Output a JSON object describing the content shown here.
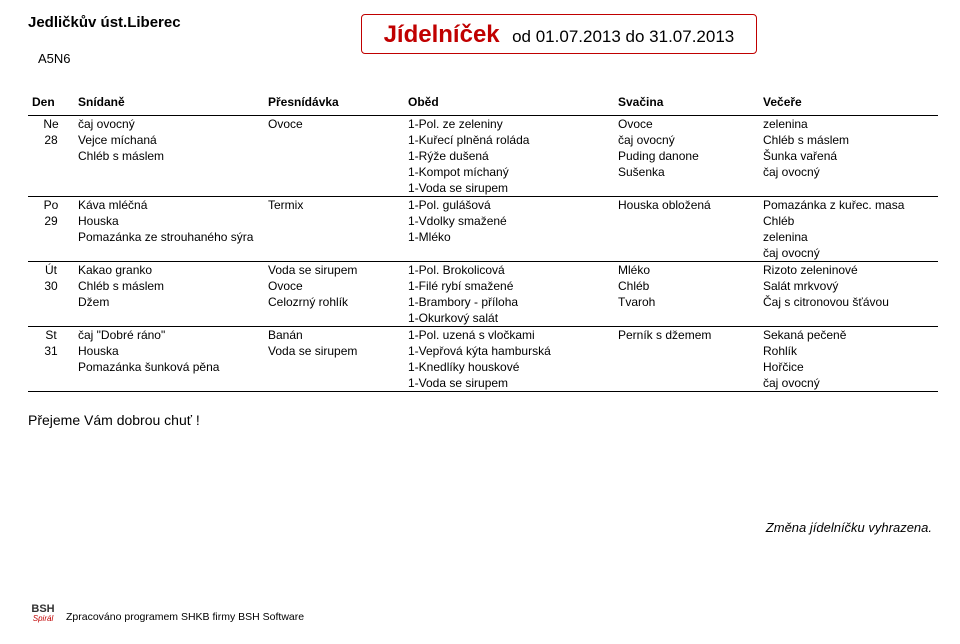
{
  "header": {
    "school": "Jedličkův úst.Liberec",
    "code": "A5N6",
    "title_red": "Jídelníček",
    "title_black": "od 01.07.2013 do 31.07.2013"
  },
  "columns": {
    "den": "Den",
    "snidane": "Snídaně",
    "presnidavka": "Přesnídávka",
    "obed": "Oběd",
    "svacina": "Svačina",
    "vecere": "Večeře"
  },
  "days": [
    {
      "dayAbbr": "Ne",
      "dayNum": "28",
      "rows": [
        {
          "sni": "čaj ovocný",
          "pre": "Ovoce",
          "obe": "1-Pol. ze zeleniny",
          "sva": "Ovoce",
          "vec": "zelenina"
        },
        {
          "sni": "Vejce míchaná",
          "pre": "",
          "obe": "1-Kuřecí plněná roláda",
          "sva": "čaj ovocný",
          "vec": "Chléb s máslem"
        },
        {
          "sni": "Chléb s máslem",
          "pre": "",
          "obe": "1-Rýže dušená",
          "sva": "Puding danone",
          "vec": "Šunka vařená"
        },
        {
          "sni": "",
          "pre": "",
          "obe": "1-Kompot míchaný",
          "sva": "Sušenka",
          "vec": "čaj ovocný"
        },
        {
          "sni": "",
          "pre": "",
          "obe": "1-Voda se sirupem",
          "sva": "",
          "vec": ""
        }
      ]
    },
    {
      "dayAbbr": "Po",
      "dayNum": "29",
      "rows": [
        {
          "sni": "Káva mléčná",
          "pre": "Termix",
          "obe": "1-Pol. gulášová",
          "sva": "Houska obložená",
          "vec": "Pomazánka z kuřec. masa"
        },
        {
          "sni": "Houska",
          "pre": "",
          "obe": "1-Vdolky smažené",
          "sva": "",
          "vec": "Chléb"
        },
        {
          "sni": "Pomazánka ze strouhaného sýra",
          "pre": "",
          "obe": "1-Mléko",
          "sva": "",
          "vec": "zelenina"
        },
        {
          "sni": "",
          "pre": "",
          "obe": "",
          "sva": "",
          "vec": "čaj ovocný"
        }
      ]
    },
    {
      "dayAbbr": "Út",
      "dayNum": "30",
      "rows": [
        {
          "sni": "Kakao granko",
          "pre": "Voda se sirupem",
          "obe": "1-Pol. Brokolicová",
          "sva": "Mléko",
          "vec": "Rizoto zeleninové"
        },
        {
          "sni": "Chléb s máslem",
          "pre": "Ovoce",
          "obe": "1-Filé rybí smažené",
          "sva": "Chléb",
          "vec": "Salát mrkvový"
        },
        {
          "sni": "Džem",
          "pre": "Celozrný rohlík",
          "obe": "1-Brambory - příloha",
          "sva": "Tvaroh",
          "vec": "Čaj s citronovou šťávou"
        },
        {
          "sni": "",
          "pre": "",
          "obe": "1-Okurkový salát",
          "sva": "",
          "vec": ""
        }
      ]
    },
    {
      "dayAbbr": "St",
      "dayNum": "31",
      "rows": [
        {
          "sni": "čaj \"Dobré ráno\"",
          "pre": "Banán",
          "obe": "1-Pol. uzená s vločkami",
          "sva": "Perník s džemem",
          "vec": "Sekaná pečeně"
        },
        {
          "sni": "Houska",
          "pre": "Voda se sirupem",
          "obe": "1-Vepřová kýta hamburská",
          "sva": "",
          "vec": "Rohlík"
        },
        {
          "sni": "Pomazánka šunková pěna",
          "pre": "",
          "obe": "1-Knedlíky houskové",
          "sva": "",
          "vec": "Hořčice"
        },
        {
          "sni": "",
          "pre": "",
          "obe": "1-Voda se sirupem",
          "sva": "",
          "vec": "čaj ovocný"
        }
      ]
    }
  ],
  "greet": "Přejeme Vám dobrou chuť !",
  "rightnote": "Změna jídelníčku vyhrazena.",
  "footer": {
    "logo_top": "BSH",
    "logo_bottom": "Spirál",
    "credit": "Zpracováno programem SHKB firmy BSH Software"
  }
}
